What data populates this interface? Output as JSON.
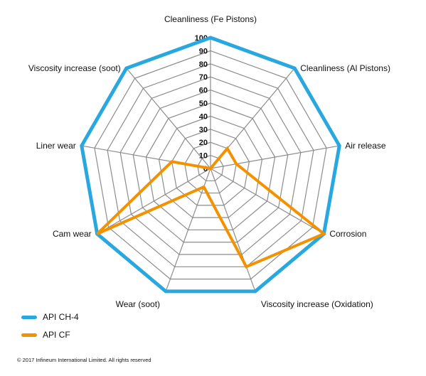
{
  "chart_data": {
    "type": "radar",
    "axes": [
      "Cleanliness (Fe Pistons)",
      "Cleanliness (Al Pistons)",
      "Air release",
      "Corrosion",
      "Viscosity increase (Oxidation)",
      "Wear (soot)",
      "Cam wear",
      "Liner wear",
      "Viscosity increase (soot)"
    ],
    "ticks": [
      "0",
      "10",
      "20",
      "30",
      "40",
      "50",
      "60",
      "70",
      "80",
      "90",
      "100"
    ],
    "range": [
      0,
      100
    ],
    "grid": true,
    "legend_position": "bottom-left",
    "series": [
      {
        "name": "API CH-4",
        "color": "#29a8e0",
        "values": [
          100,
          100,
          100,
          100,
          100,
          100,
          100,
          100,
          100
        ]
      },
      {
        "name": "API CF",
        "color": "#f39200",
        "values": [
          0,
          20,
          20,
          100,
          80,
          15,
          100,
          30,
          0
        ]
      }
    ]
  },
  "copyright": "© 2017 Infineum International Limited. All rights reserved"
}
